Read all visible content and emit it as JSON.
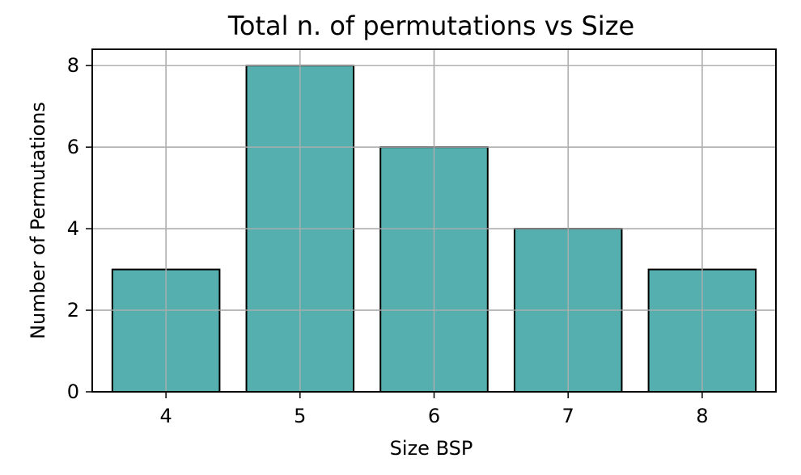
{
  "chart_data": {
    "type": "bar",
    "title": "Total n. of permutations vs Size",
    "xlabel": "Size BSP",
    "ylabel": "Number of Permutations",
    "categories": [
      "4",
      "5",
      "6",
      "7",
      "8"
    ],
    "values": [
      3,
      8,
      6,
      4,
      3
    ],
    "ylim": [
      0,
      8.4
    ],
    "yticks": [
      "0",
      "2",
      "4",
      "6",
      "8"
    ],
    "grid": true,
    "bar_color": "#55afae",
    "bar_edge_color": "#000000",
    "grid_color": "#b0b0b0"
  }
}
